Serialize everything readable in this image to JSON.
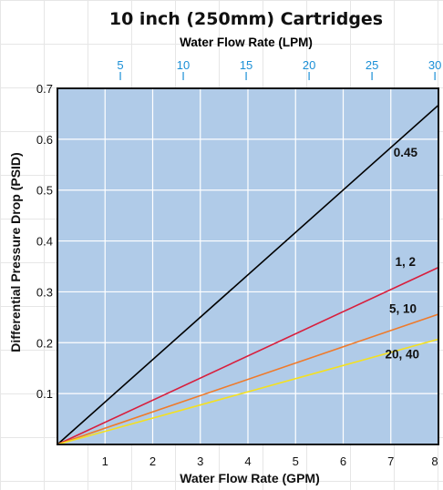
{
  "colors": {
    "plot_background": "#b0cbe8",
    "top_axis": "#1a8fd6",
    "frame": "#111111"
  },
  "chart_data": {
    "type": "line",
    "title": "10 inch (250mm) Cartridges",
    "xlabel": "Water Flow Rate (GPM)",
    "ylabel": "Differential Pressure Drop (PSID)",
    "x2label": "Water Flow Rate (LPM)",
    "xlim": [
      0,
      8
    ],
    "ylim": [
      0,
      0.7
    ],
    "x2lim": [
      0,
      30.28
    ],
    "x_ticks": [
      "1",
      "2",
      "3",
      "4",
      "5",
      "6",
      "7",
      "8"
    ],
    "y_ticks": [
      "0.1",
      "0.2",
      "0.3",
      "0.4",
      "0.5",
      "0.6",
      "0.7"
    ],
    "x2_ticks": [
      "5",
      "10",
      "15",
      "20",
      "25",
      "30"
    ],
    "grid": true,
    "series": [
      {
        "name": "0.45",
        "color": "#000000",
        "x": [
          0,
          8
        ],
        "y": [
          0,
          0.667
        ]
      },
      {
        "name": "1, 2",
        "color": "#d81e3c",
        "x": [
          0,
          8
        ],
        "y": [
          0,
          0.348
        ]
      },
      {
        "name": "5, 10",
        "color": "#ef7a2a",
        "x": [
          0,
          8
        ],
        "y": [
          0,
          0.256
        ]
      },
      {
        "name": "20, 40",
        "color": "#f4e020",
        "x": [
          0,
          8
        ],
        "y": [
          0,
          0.207
        ]
      }
    ]
  }
}
